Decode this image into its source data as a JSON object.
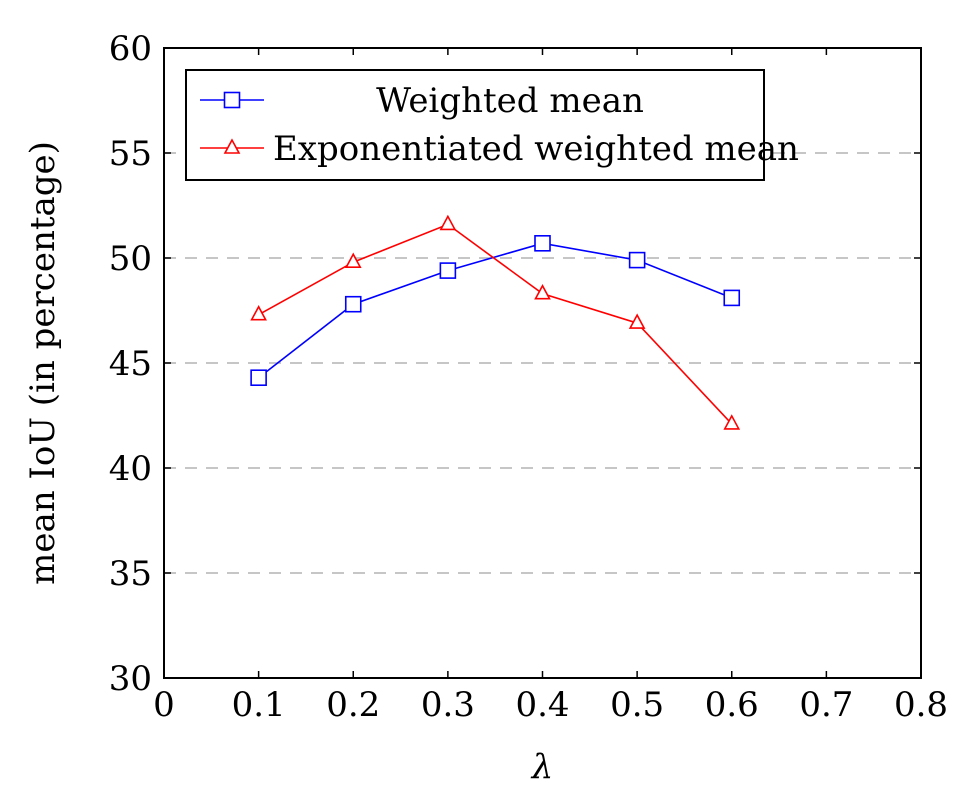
{
  "chart_data": {
    "type": "line",
    "title": "",
    "xlabel": "λ",
    "ylabel": "mean IoU (in percentage)",
    "xlim": [
      0,
      0.8
    ],
    "ylim": [
      30,
      60
    ],
    "x_ticks": [
      "0",
      "0.1",
      "0.2",
      "0.3",
      "0.4",
      "0.5",
      "0.6",
      "0.7",
      "0.8"
    ],
    "y_ticks": [
      "30",
      "35",
      "40",
      "45",
      "50",
      "55",
      "60"
    ],
    "grid": "horizontal-dashed",
    "legend_position": "top-left",
    "x": [
      0.1,
      0.2,
      0.3,
      0.4,
      0.5,
      0.6
    ],
    "series": [
      {
        "name": "Weighted mean",
        "color": "#0000ff",
        "marker": "square",
        "values": [
          44.3,
          47.8,
          49.4,
          50.7,
          49.9,
          48.1
        ]
      },
      {
        "name": "Exponentiated weighted mean",
        "color": "#ff0000",
        "marker": "triangle",
        "values": [
          47.3,
          49.8,
          51.6,
          48.3,
          46.9,
          42.1
        ]
      }
    ]
  }
}
